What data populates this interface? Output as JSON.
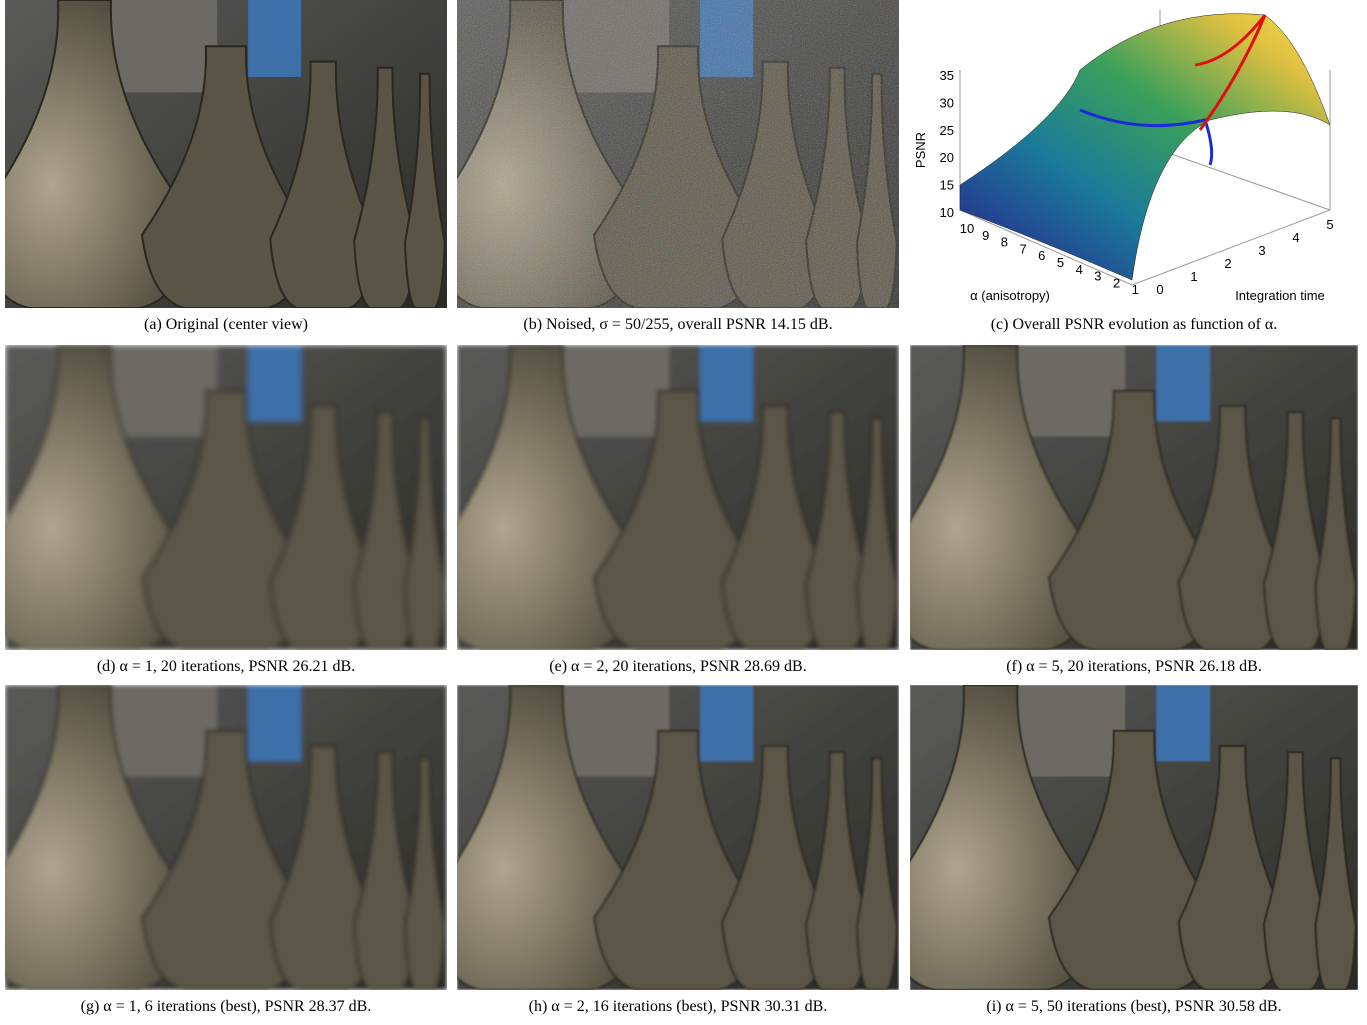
{
  "panels": [
    {
      "caption": "(a) Original (center view)"
    },
    {
      "caption": "(b) Noised, σ = 50/255, overall PSNR 14.15 dB."
    },
    {
      "caption": "(c) Overall PSNR evolution as function of α."
    },
    {
      "caption": "(d) α = 1, 20 iterations, PSNR 26.21 dB."
    },
    {
      "caption": "(e) α = 2, 20 iterations, PSNR 28.69 dB."
    },
    {
      "caption": "(f) α = 5, 20 iterations, PSNR 26.18 dB."
    },
    {
      "caption": "(g) α = 1, 6 iterations (best), PSNR 28.37 dB."
    },
    {
      "caption": "(h) α = 2, 16 iterations (best), PSNR 30.31 dB."
    },
    {
      "caption": "(i) α = 5, 50 iterations (best), PSNR 30.58 dB."
    }
  ],
  "plot": {
    "z_label": "PSNR",
    "x_label": "α (anisotropy)",
    "y_label": "Integration time",
    "z_ticks": [
      10,
      15,
      20,
      25,
      30,
      35
    ],
    "alpha_ticks": [
      10,
      9,
      8,
      7,
      6,
      5,
      4,
      3,
      2,
      1
    ],
    "time_ticks": [
      0,
      1,
      2,
      3,
      4,
      5
    ]
  }
}
